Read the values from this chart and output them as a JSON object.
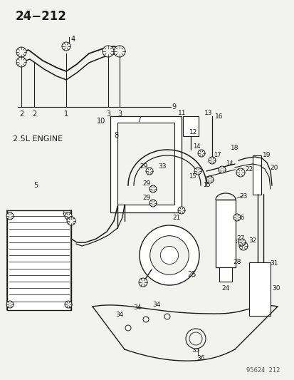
{
  "title": "24−212",
  "bg_color": "#f2f2ee",
  "line_color": "#1a1a1a",
  "text_color": "#1a1a1a",
  "watermark": "95624  212",
  "fig_w": 4.14,
  "fig_h": 5.33,
  "dpi": 100
}
